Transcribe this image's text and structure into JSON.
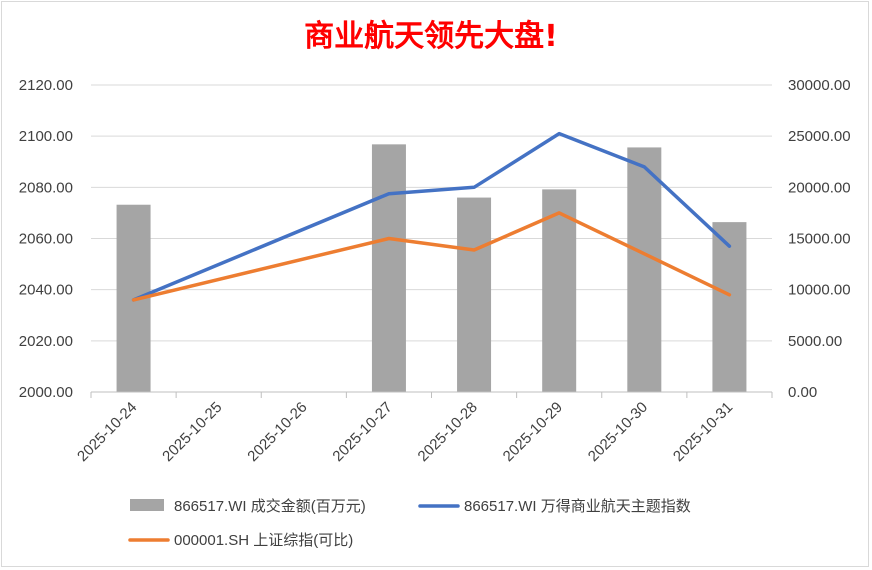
{
  "chart_data": {
    "type": "bar+line",
    "title": "商业航天领先大盘!",
    "categories": [
      "2025-10-24",
      "2025-10-25",
      "2025-10-26",
      "2025-10-27",
      "2025-10-28",
      "2025-10-29",
      "2025-10-30",
      "2025-10-31"
    ],
    "left_axis": {
      "min": 2000,
      "max": 2120,
      "step": 20,
      "tick_labels": [
        "2000.00",
        "2020.00",
        "2040.00",
        "2060.00",
        "2080.00",
        "2100.00",
        "2120.00"
      ]
    },
    "right_axis": {
      "min": 0,
      "max": 30000,
      "step": 5000,
      "tick_labels": [
        "0.00",
        "5000.00",
        "10000.00",
        "15000.00",
        "20000.00",
        "25000.00",
        "30000.00"
      ]
    },
    "series": [
      {
        "name": "866517.WI 成交金额(百万元)",
        "kind": "bar",
        "axis": "right",
        "color": "#a5a5a5",
        "values": [
          18300,
          null,
          null,
          24200,
          19000,
          19800,
          23900,
          16600
        ]
      },
      {
        "name": "866517.WI 万得商业航天主题指数",
        "kind": "line",
        "axis": "left",
        "color": "#4472c4",
        "values": [
          2036,
          null,
          null,
          2077.5,
          2080,
          2101,
          2088,
          2057
        ]
      },
      {
        "name": "000001.SH 上证综指(可比)",
        "kind": "line",
        "axis": "left",
        "color": "#ed7d31",
        "values": [
          2036,
          null,
          null,
          2060,
          2055.5,
          2070,
          2054,
          2038
        ]
      }
    ],
    "grid": true,
    "legend_position": "bottom"
  }
}
